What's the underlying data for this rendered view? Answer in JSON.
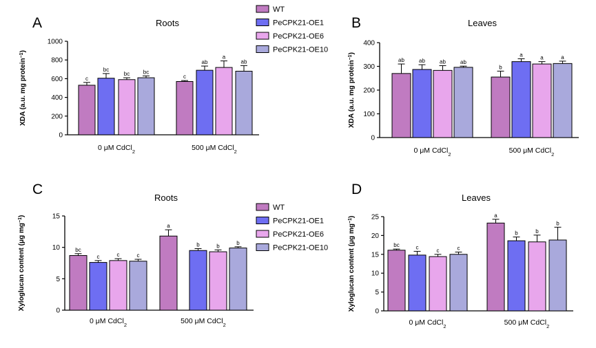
{
  "colors": {
    "WT": "#C07BC1",
    "PeCPK21-OE1": "#6E6EF2",
    "PeCPK21-OE6": "#E8A6EC",
    "PeCPK21-OE10": "#A9A9DC",
    "axis": "#000000"
  },
  "legend": {
    "entries": [
      "WT",
      "PeCPK21-OE1",
      "PeCPK21-OE6",
      "PeCPK21-OE10"
    ]
  },
  "chart_data": [
    {
      "panel": "A",
      "type": "bar",
      "title": "Roots",
      "ylabel": "XDA (a.u. mg protein",
      "ylabel_sup": "−1",
      "ylabel_tail": ")",
      "ylim": [
        0,
        1000
      ],
      "yticks": [
        "0",
        "200",
        "400",
        "600",
        "800",
        "1000"
      ],
      "yticks_values": [
        0,
        200,
        400,
        600,
        800,
        1000
      ],
      "categories": [
        {
          "pre": "0 μM CdCl",
          "sub": "2"
        },
        {
          "pre": "500 μM CdCl",
          "sub": "2"
        }
      ],
      "series": [
        {
          "name": "WT",
          "values": [
            530,
            570
          ],
          "errors": [
            30,
            10
          ],
          "labels": [
            "c",
            "c"
          ]
        },
        {
          "name": "PeCPK21-OE1",
          "values": [
            605,
            690
          ],
          "errors": [
            50,
            45
          ],
          "labels": [
            "bc",
            "ab"
          ]
        },
        {
          "name": "PeCPK21-OE6",
          "values": [
            590,
            720
          ],
          "errors": [
            20,
            70
          ],
          "labels": [
            "bc",
            "a"
          ]
        },
        {
          "name": "PeCPK21-OE10",
          "values": [
            610,
            680
          ],
          "errors": [
            20,
            60
          ],
          "labels": [
            "bc",
            "ab"
          ]
        }
      ]
    },
    {
      "panel": "B",
      "type": "bar",
      "title": "Leaves",
      "ylabel": "XDA (a.u. mg protein",
      "ylabel_sup": "−1",
      "ylabel_tail": ")",
      "ylim": [
        0,
        400
      ],
      "yticks": [
        "0",
        "100",
        "200",
        "300",
        "400"
      ],
      "yticks_values": [
        0,
        100,
        200,
        300,
        400
      ],
      "categories": [
        {
          "pre": "0 μM CdCl",
          "sub": "2"
        },
        {
          "pre": "500 μM CdCl",
          "sub": "2"
        }
      ],
      "series": [
        {
          "name": "WT",
          "values": [
            270,
            255
          ],
          "errors": [
            40,
            25
          ],
          "labels": [
            "ab",
            "b"
          ]
        },
        {
          "name": "PeCPK21-OE1",
          "values": [
            287,
            320
          ],
          "errors": [
            20,
            12
          ],
          "labels": [
            "ab",
            "a"
          ]
        },
        {
          "name": "PeCPK21-OE6",
          "values": [
            283,
            310
          ],
          "errors": [
            20,
            10
          ],
          "labels": [
            "ab",
            "a"
          ]
        },
        {
          "name": "PeCPK21-OE10",
          "values": [
            296,
            312
          ],
          "errors": [
            5,
            10
          ],
          "labels": [
            "ab",
            "a"
          ]
        }
      ]
    },
    {
      "panel": "C",
      "type": "bar",
      "title": "Roots",
      "ylabel": "Xyloglucan content (μg mg",
      "ylabel_sup": "−1",
      "ylabel_tail": ")",
      "ylim": [
        0,
        15
      ],
      "yticks": [
        "0",
        "5",
        "10",
        "15"
      ],
      "yticks_values": [
        0,
        5,
        10,
        15
      ],
      "categories": [
        {
          "pre": "0 μM CdCl",
          "sub": "2"
        },
        {
          "pre": "500 μM CdCl",
          "sub": "2"
        }
      ],
      "series": [
        {
          "name": "WT",
          "values": [
            8.7,
            11.8
          ],
          "errors": [
            0.3,
            1.0
          ],
          "labels": [
            "bc",
            "a"
          ]
        },
        {
          "name": "PeCPK21-OE1",
          "values": [
            7.6,
            9.5
          ],
          "errors": [
            0.3,
            0.3
          ],
          "labels": [
            "c",
            "b"
          ]
        },
        {
          "name": "PeCPK21-OE6",
          "values": [
            7.9,
            9.3
          ],
          "errors": [
            0.3,
            0.3
          ],
          "labels": [
            "c",
            "b"
          ]
        },
        {
          "name": "PeCPK21-OE10",
          "values": [
            7.8,
            9.9
          ],
          "errors": [
            0.3,
            0.2
          ],
          "labels": [
            "c",
            "b"
          ]
        }
      ]
    },
    {
      "panel": "D",
      "type": "bar",
      "title": "Leaves",
      "ylabel": "Xyloglucan content (μg mg",
      "ylabel_sup": "−1",
      "ylabel_tail": ")",
      "ylim": [
        0,
        25
      ],
      "yticks": [
        "0",
        "5",
        "10",
        "15",
        "20",
        "25"
      ],
      "yticks_values": [
        0,
        5,
        10,
        15,
        20,
        25
      ],
      "categories": [
        {
          "pre": "0 μM CdCl",
          "sub": "2"
        },
        {
          "pre": "500 μM CdCl",
          "sub": "2"
        }
      ],
      "series": [
        {
          "name": "WT",
          "values": [
            16.1,
            23.3
          ],
          "errors": [
            0.3,
            1.0
          ],
          "labels": [
            "bc",
            "a"
          ]
        },
        {
          "name": "PeCPK21-OE1",
          "values": [
            14.8,
            18.6
          ],
          "errors": [
            1.0,
            1.0
          ],
          "labels": [
            "c",
            "b"
          ]
        },
        {
          "name": "PeCPK21-OE6",
          "values": [
            14.4,
            18.3
          ],
          "errors": [
            0.6,
            1.8
          ],
          "labels": [
            "c",
            "b"
          ]
        },
        {
          "name": "PeCPK21-OE10",
          "values": [
            15.0,
            18.8
          ],
          "errors": [
            0.6,
            3.4
          ],
          "labels": [
            "c",
            "b"
          ]
        }
      ]
    }
  ]
}
